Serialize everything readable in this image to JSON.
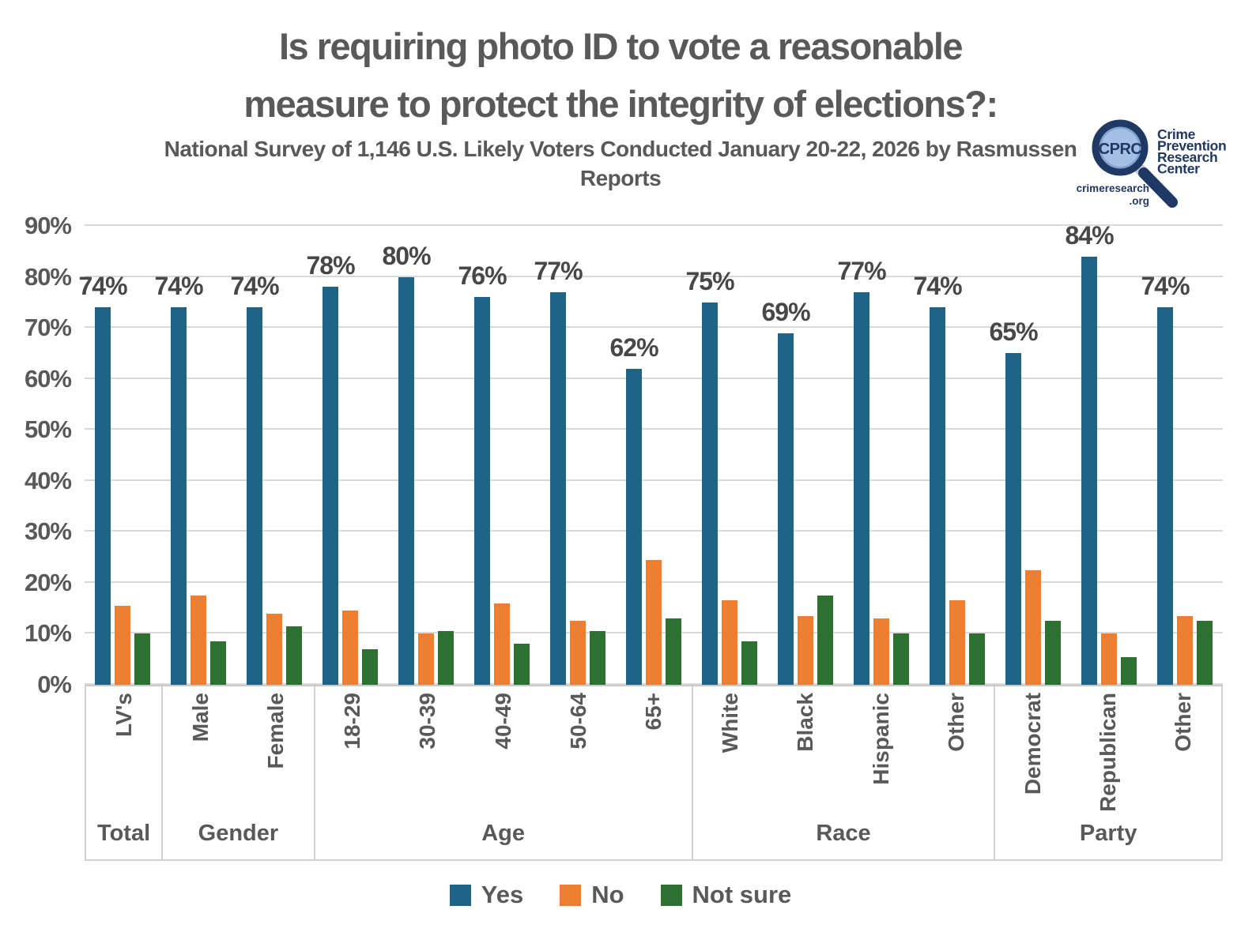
{
  "chart_data": {
    "type": "bar",
    "title": "Is requiring photo ID to vote a reasonable measure to protect the integrity of elections?:",
    "title_line1": "Is requiring photo ID to vote a reasonable",
    "title_line2": "measure to protect the integrity of elections?:",
    "subtitle": "National Survey of 1,146 U.S. Likely Voters Conducted January 20-22, 2026 by Rasmussen Reports",
    "subtitle_line1": "National Survey of 1,146 U.S. Likely Voters Conducted January 20-22, 2026 by Rasmussen",
    "subtitle_line2": "Reports",
    "ylim": [
      0,
      90
    ],
    "ytick_step": 10,
    "ytick_labels": [
      "0%",
      "10%",
      "20%",
      "30%",
      "40%",
      "50%",
      "60%",
      "70%",
      "80%",
      "90%"
    ],
    "grid": true,
    "legend_position": "bottom",
    "grid_color": "#d9d9d9",
    "series_meta": [
      {
        "name": "Yes",
        "color": "#1f6387"
      },
      {
        "name": "No",
        "color": "#ed7d31"
      },
      {
        "name": "Not sure",
        "color": "#2e7031"
      }
    ],
    "groups": [
      {
        "name": "Total",
        "items": [
          {
            "label": "LV's",
            "yes": 74,
            "no": 15.5,
            "not_sure": 10,
            "yes_label": "74%"
          }
        ]
      },
      {
        "name": "Gender",
        "items": [
          {
            "label": "Male",
            "yes": 74,
            "no": 17.5,
            "not_sure": 8.5,
            "yes_label": "74%"
          },
          {
            "label": "Female",
            "yes": 74,
            "no": 14,
            "not_sure": 11.5,
            "yes_label": "74%"
          }
        ]
      },
      {
        "name": "Age",
        "items": [
          {
            "label": "18-29",
            "yes": 78,
            "no": 14.5,
            "not_sure": 7,
            "yes_label": "78%"
          },
          {
            "label": "30-39",
            "yes": 80,
            "no": 10,
            "not_sure": 10.5,
            "yes_label": "80%"
          },
          {
            "label": "40-49",
            "yes": 76,
            "no": 16,
            "not_sure": 8,
            "yes_label": "76%"
          },
          {
            "label": "50-64",
            "yes": 77,
            "no": 12.5,
            "not_sure": 10.5,
            "yes_label": "77%"
          },
          {
            "label": "65+",
            "yes": 62,
            "no": 24.5,
            "not_sure": 13,
            "yes_label": "62%"
          }
        ]
      },
      {
        "name": "Race",
        "items": [
          {
            "label": "White",
            "yes": 75,
            "no": 16.5,
            "not_sure": 8.5,
            "yes_label": "75%"
          },
          {
            "label": "Black",
            "yes": 69,
            "no": 13.5,
            "not_sure": 17.5,
            "yes_label": "69%"
          },
          {
            "label": "Hispanic",
            "yes": 77,
            "no": 13,
            "not_sure": 10,
            "yes_label": "77%"
          },
          {
            "label": "Other",
            "yes": 74,
            "no": 16.5,
            "not_sure": 10,
            "yes_label": "74%"
          }
        ]
      },
      {
        "name": "Party",
        "items": [
          {
            "label": "Democrat",
            "yes": 65,
            "no": 22.5,
            "not_sure": 12.5,
            "yes_label": "65%"
          },
          {
            "label": "Republican",
            "yes": 84,
            "no": 10,
            "not_sure": 5.5,
            "yes_label": "84%"
          },
          {
            "label": "Other",
            "yes": 74,
            "no": 13.5,
            "not_sure": 12.5,
            "yes_label": "74%"
          }
        ]
      }
    ]
  },
  "logo": {
    "acronym": "CPRC",
    "name_lines": [
      "Crime",
      "Prevention",
      "Research",
      "Center"
    ],
    "url_line1": "crimeresearch",
    "url_line2": ".org",
    "navy": "#1f3864",
    "lens_blue": "#7fa3cf"
  }
}
